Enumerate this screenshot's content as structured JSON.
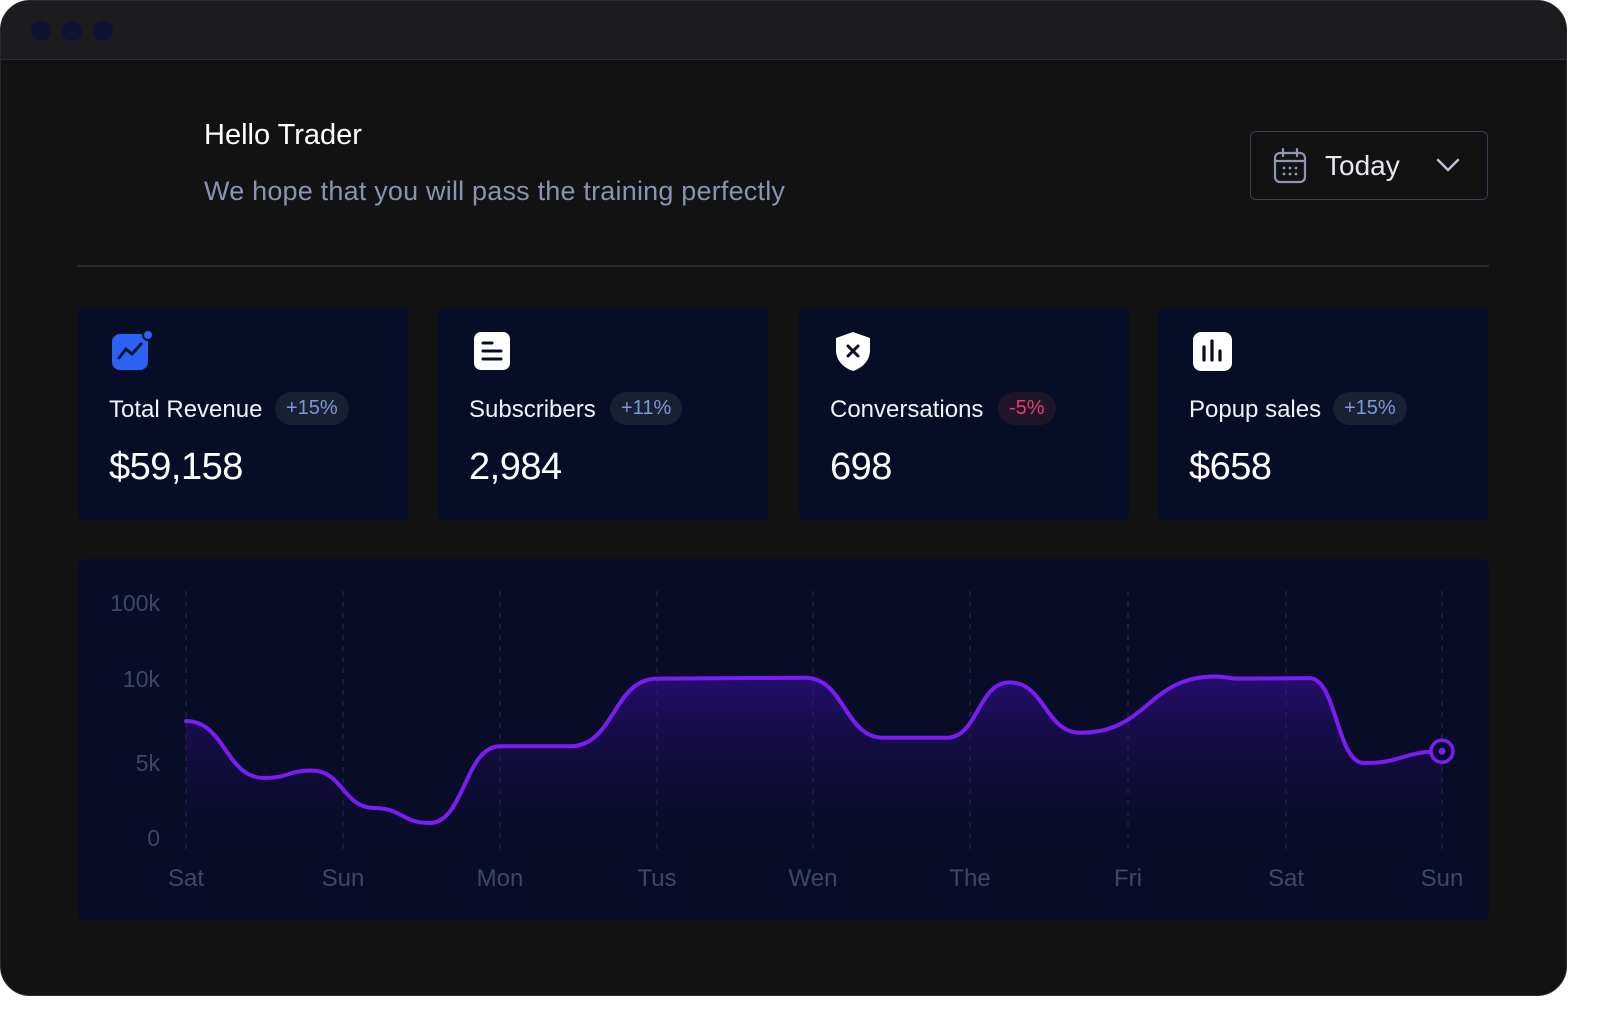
{
  "greeting": "Hello Trader",
  "subtitle": "We hope that you will pass the training perfectly",
  "date_filter": {
    "selected": "Today",
    "icon": "calendar-icon"
  },
  "colors": {
    "accent": "#7c1cf5",
    "card_bg": "#070c27",
    "badge_positive": "#7a9ad6",
    "badge_negative": "#ef3b6a"
  },
  "cards": [
    {
      "title": "Total Revenue",
      "change": "+15%",
      "value": "$59,158",
      "icon": "trend-chart-icon"
    },
    {
      "title": "Subscribers",
      "change": "+11%",
      "value": "2,984",
      "icon": "document-icon"
    },
    {
      "title": "Conversations",
      "change": "-5%",
      "value": "698",
      "icon": "shield-x-icon"
    },
    {
      "title": "Popup sales",
      "change": "+15%",
      "value": "$658",
      "icon": "bar-chart-icon"
    }
  ],
  "chart_data": {
    "type": "area",
    "y_ticks": [
      "100k",
      "10k",
      "5k",
      "0"
    ],
    "x_ticks": [
      "Sat",
      "Sun",
      "Mon",
      "Tus",
      "Wen",
      "The",
      "Fri",
      "Sat",
      "Sun"
    ],
    "grid": "vertical dashed",
    "series": [
      {
        "x": [
          0,
          0.5,
          0.8,
          1.2,
          1.55,
          2.0,
          2.45,
          3.0,
          3.95,
          4.45,
          4.85,
          5.25,
          5.7,
          6.55,
          6.7,
          7.15,
          7.5,
          8.0
        ],
        "values": [
          7500,
          4000,
          4500,
          2000,
          1000,
          6000,
          6000,
          10500,
          11500,
          6500,
          6500,
          9800,
          6800,
          13000,
          10500,
          11000,
          5000,
          5700
        ]
      }
    ]
  }
}
